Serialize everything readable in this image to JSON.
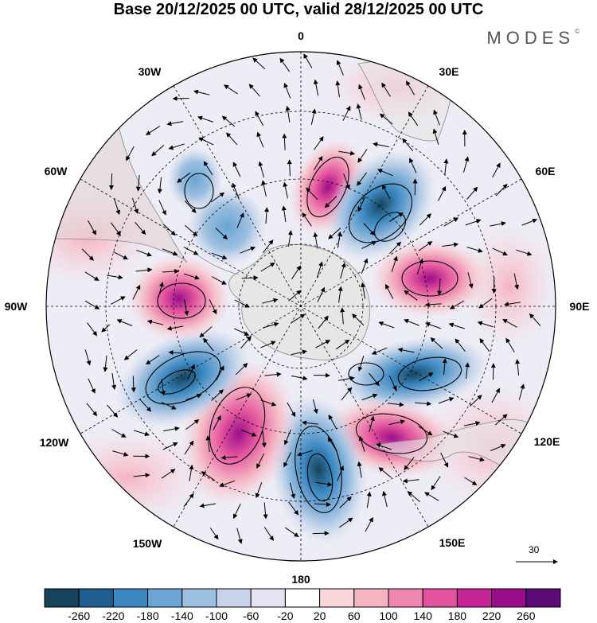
{
  "header": {
    "title": "Base 20/12/2025 00 UTC, valid 28/12/2025 00 UTC",
    "brand": "MODES",
    "brand_mark": "©"
  },
  "map": {
    "projection": "south polar stereographic",
    "longitude_labels": {
      "lon_0": "0",
      "lon_30e": "30E",
      "lon_60e": "60E",
      "lon_90e": "90E",
      "lon_120e": "120E",
      "lon_150e": "150E",
      "lon_180": "180",
      "lon_150w": "150W",
      "lon_120w": "120W",
      "lon_90w": "90W",
      "lon_60w": "60W",
      "lon_30w": "30W"
    },
    "anomaly_centers": [
      {
        "sign": "positive",
        "value": 240,
        "location": "south atlantic near 0"
      },
      {
        "sign": "negative",
        "value": -180,
        "location": "near 30E"
      },
      {
        "sign": "positive",
        "value": 160,
        "location": "near 60E"
      },
      {
        "sign": "negative",
        "value": -180,
        "location": "near 110E"
      },
      {
        "sign": "positive",
        "value": 200,
        "location": "south of australia"
      },
      {
        "sign": "negative",
        "value": -260,
        "location": "near 175E"
      },
      {
        "sign": "positive",
        "value": 240,
        "location": "near 150W"
      },
      {
        "sign": "negative",
        "value": -260,
        "location": "near 120W"
      },
      {
        "sign": "positive",
        "value": 220,
        "location": "near 90W"
      },
      {
        "sign": "negative",
        "value": -120,
        "location": "near 60W"
      },
      {
        "sign": "negative",
        "value": -100,
        "location": "near 30W"
      }
    ],
    "wind_scale": {
      "label": "30"
    }
  },
  "colorbar": {
    "ticks": [
      "-260",
      "-220",
      "-180",
      "-140",
      "-100",
      "-60",
      "-20",
      "20",
      "60",
      "100",
      "140",
      "180",
      "220",
      "260"
    ],
    "colors": [
      "#16425b",
      "#1e5f8f",
      "#3b88c0",
      "#6aa5d3",
      "#9dbfe0",
      "#c8d3ea",
      "#e4e4f1",
      "#ffffff",
      "#f9d6da",
      "#f5b4c2",
      "#ee86ad",
      "#e2539d",
      "#c52595",
      "#9a0d8a",
      "#5b0b75"
    ]
  }
}
